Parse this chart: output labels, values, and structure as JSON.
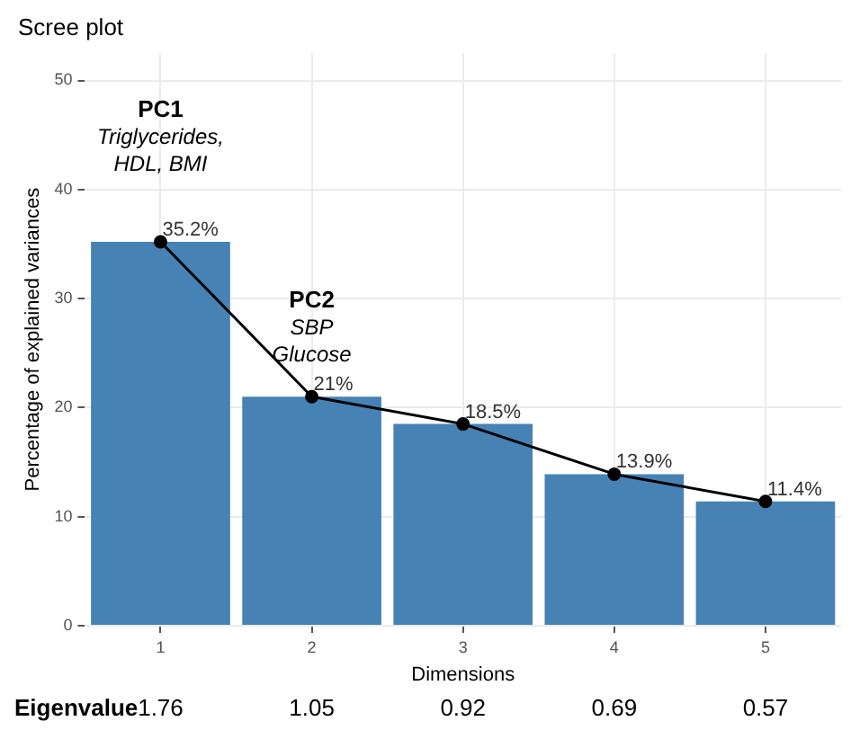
{
  "chart_data": {
    "type": "bar",
    "title": "Scree plot",
    "xlabel": "Dimensions",
    "ylabel": "Percentage of explained variances",
    "categories": [
      "1",
      "2",
      "3",
      "4",
      "5"
    ],
    "series": [
      {
        "color": "#4682b4",
        "values": [
          35.2,
          21,
          18.5,
          13.9,
          11.4
        ]
      },
      {
        "type": "line",
        "color": "#000000",
        "values": [
          35.2,
          21,
          18.5,
          13.9,
          11.4
        ],
        "value_labels": [
          "35.2%",
          "21%",
          "18.5%",
          "13.9%",
          "11.4%"
        ]
      }
    ],
    "marker": "circle",
    "ylim": [
      0,
      52.5
    ],
    "yticks": [
      0,
      10,
      20,
      30,
      40,
      50
    ],
    "grid": true,
    "annotations": [
      "PC1\nTriglycerides,\nHDL, BMI",
      "PC2\nSBP\nGlucose",
      "Eigenvalue",
      "1.76",
      "1.05",
      "0.92",
      "0.69",
      "0.57"
    ]
  }
}
